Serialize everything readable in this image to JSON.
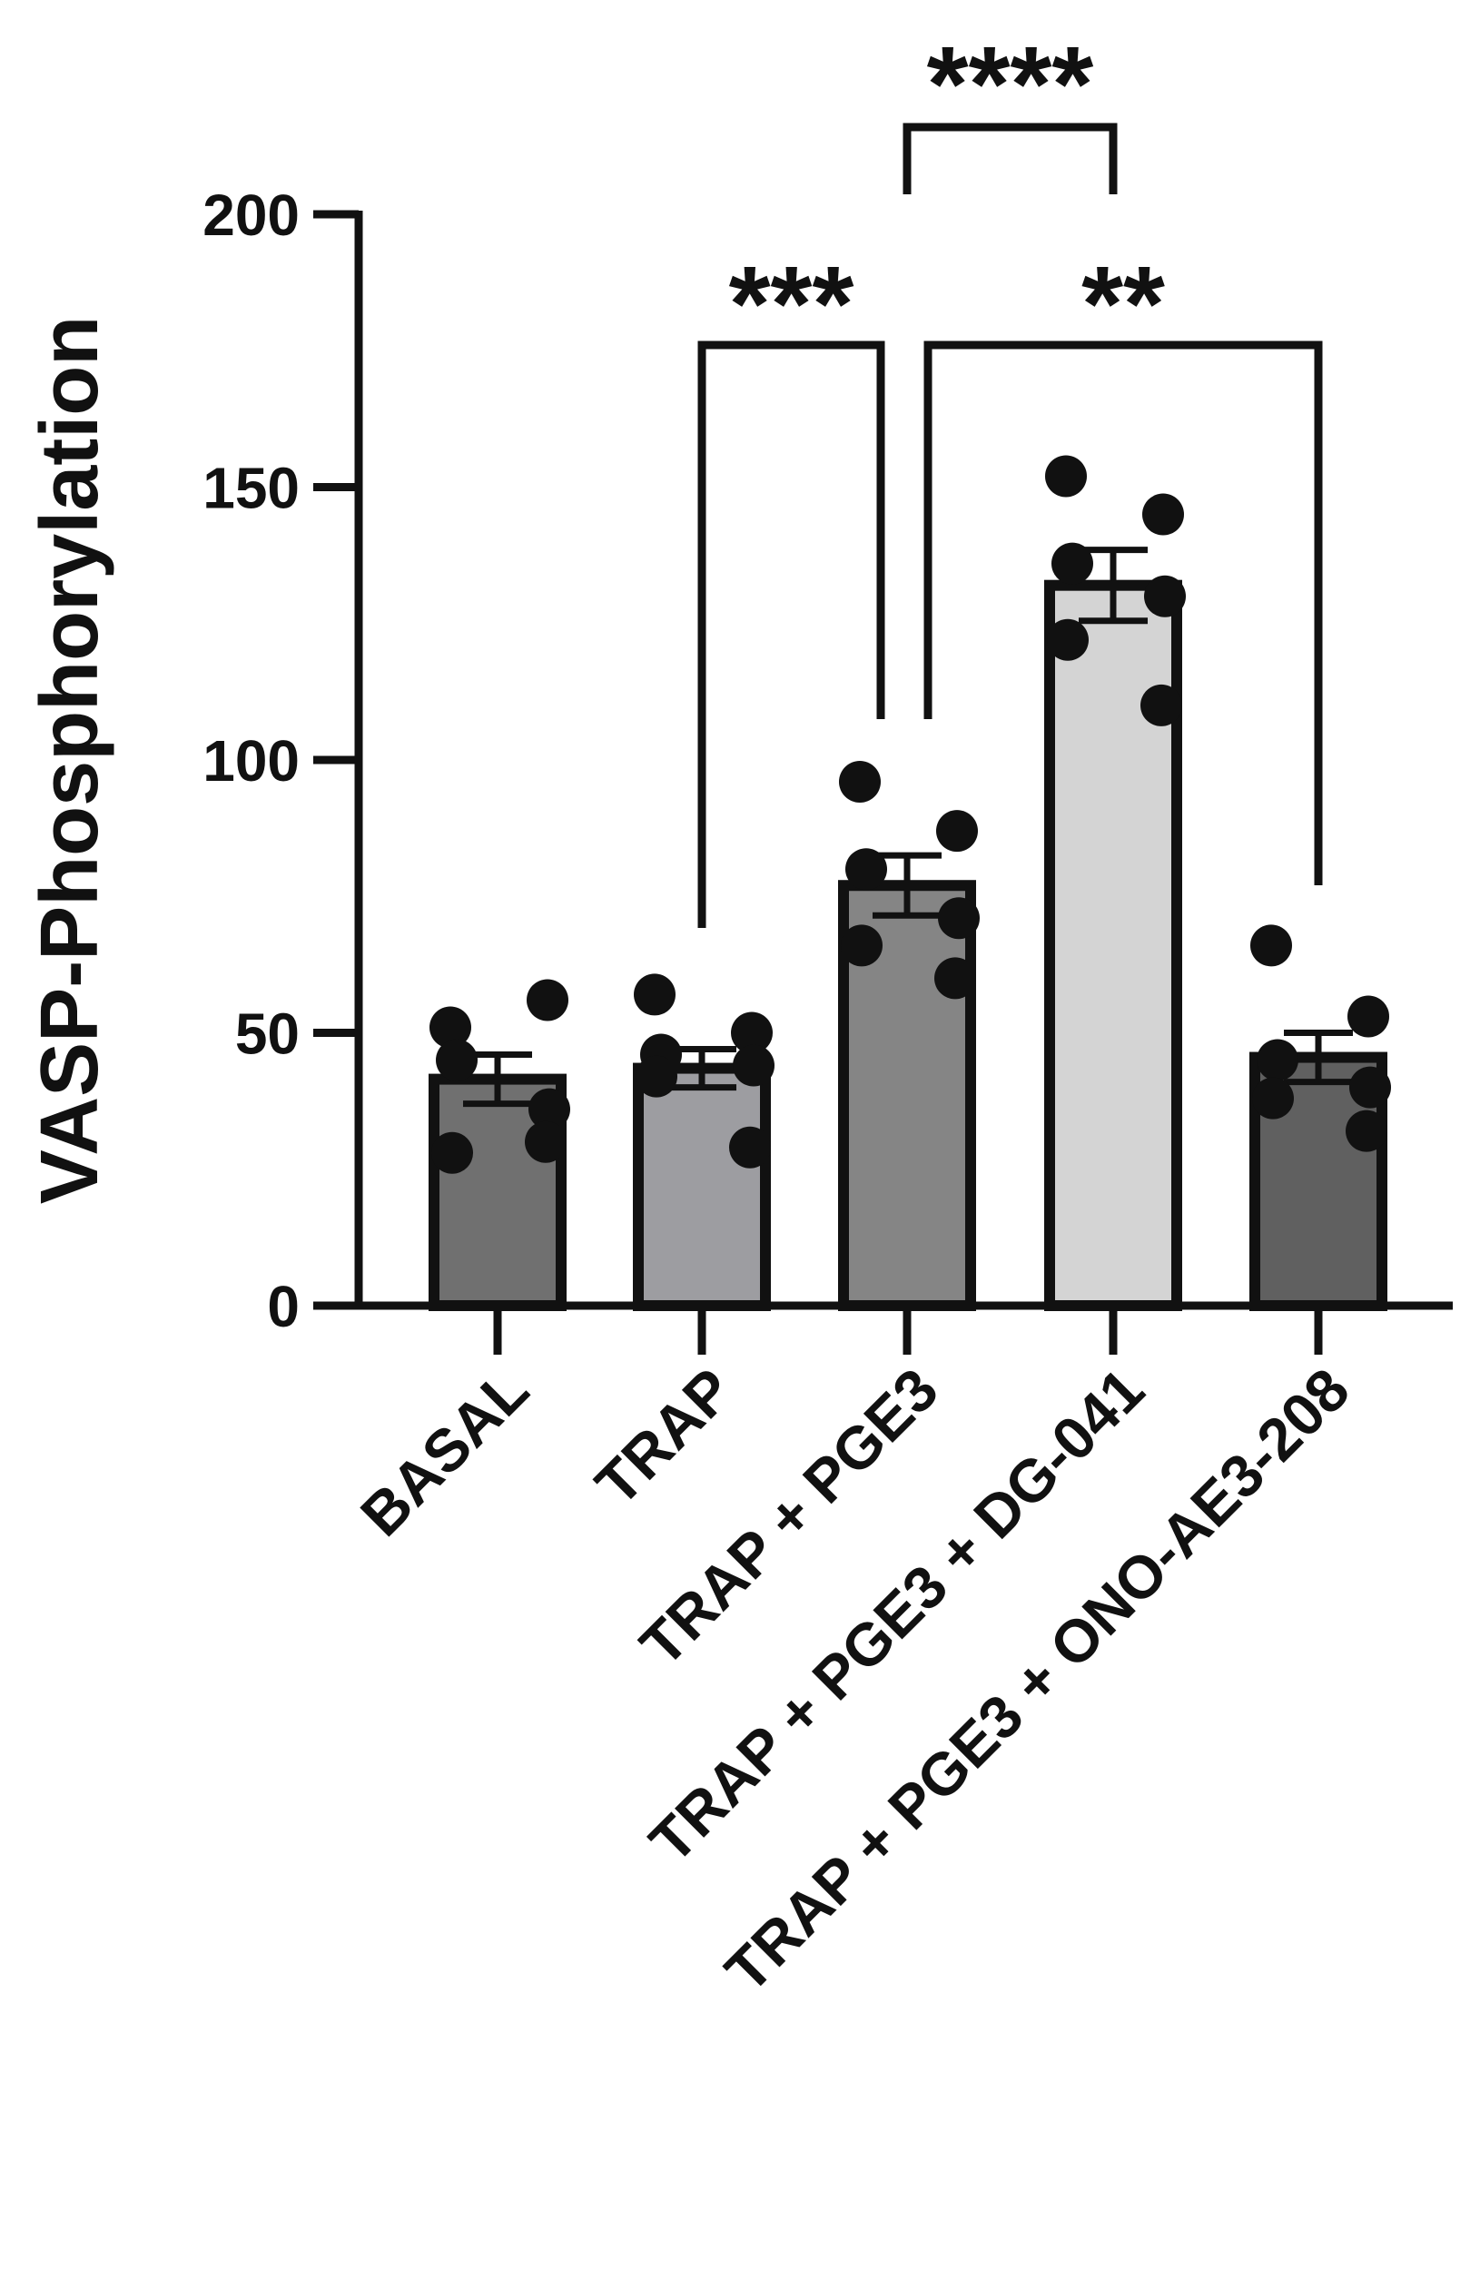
{
  "chart_data": {
    "type": "bar",
    "title": "",
    "xlabel": "",
    "ylabel": "VASP-Phosphorylation",
    "ylim": [
      0,
      200
    ],
    "yticks": [
      0,
      50,
      100,
      150,
      200
    ],
    "categories": [
      "BASAL",
      "TRAP",
      "TRAP + PGE3",
      "TRAP + PGE3 + DG-041",
      "TRAP + PGE3 + ONO-AE3-208"
    ],
    "bar_colors": [
      "#707070",
      "#9d9da1",
      "#858585",
      "#d4d4d4",
      "#606060"
    ],
    "values": [
      41.5,
      43.5,
      77,
      132,
      45.5
    ],
    "sem": [
      4.5,
      3.5,
      5.5,
      6.5,
      4.5
    ],
    "points": [
      [
        51,
        56,
        45,
        36,
        28,
        30
      ],
      [
        57,
        50,
        46,
        44,
        42,
        29
      ],
      [
        96,
        87,
        80,
        71,
        66,
        60
      ],
      [
        152,
        145,
        136,
        130,
        122,
        110
      ],
      [
        66,
        53,
        45,
        40,
        38,
        32
      ]
    ],
    "significance": [
      {
        "from": 1,
        "to": 2,
        "label": "***"
      },
      {
        "from": 2,
        "to": 4,
        "label": "**"
      },
      {
        "from": 2,
        "to": 3,
        "label": "****"
      }
    ],
    "grid": false,
    "legend": "none"
  }
}
